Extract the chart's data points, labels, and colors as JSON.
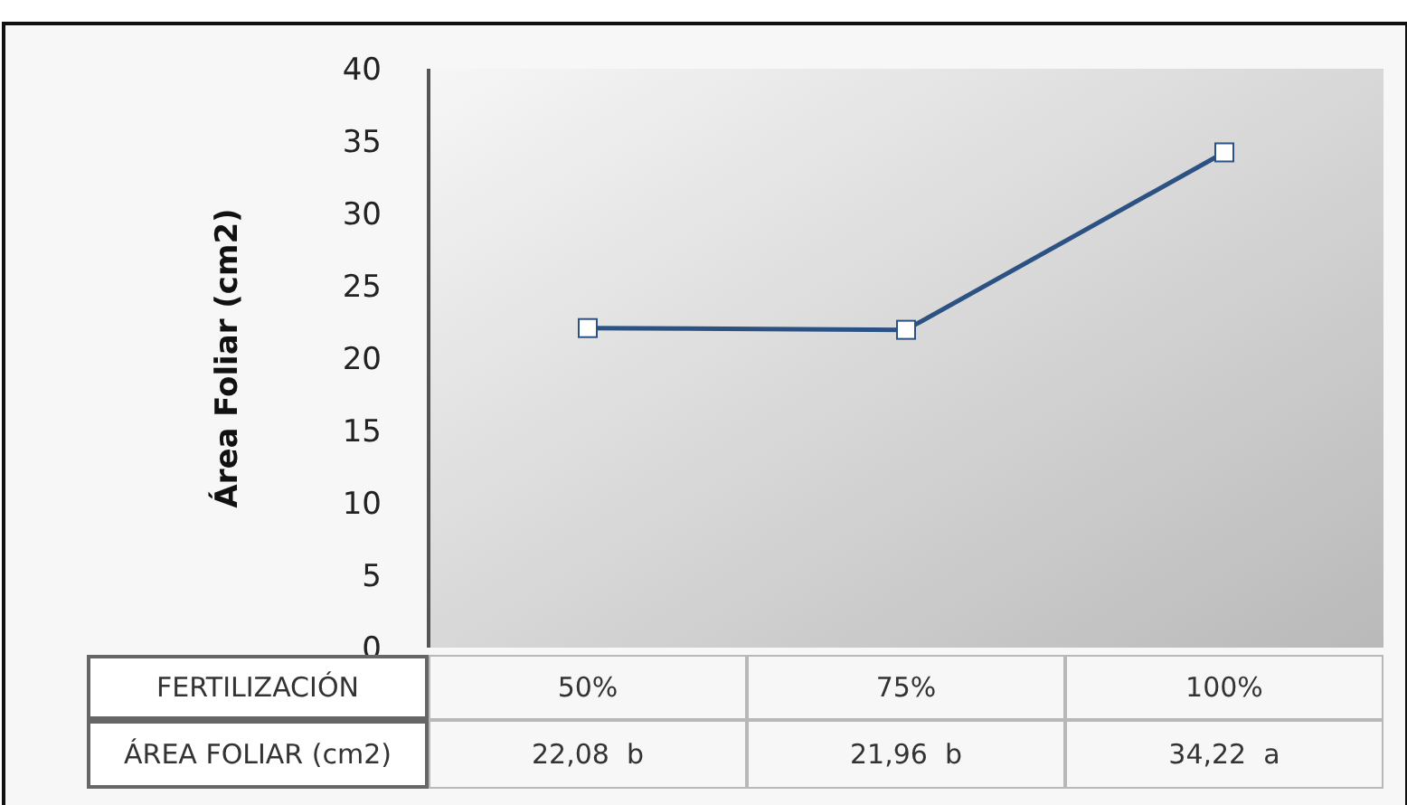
{
  "chart_data": {
    "type": "line",
    "ylabel": "Área Foliar (cm2)",
    "xlabel": "FERTILIZACIÓN",
    "categories": [
      "50%",
      "75%",
      "100%"
    ],
    "series": [
      {
        "name": "ÁREA FOLIAR (cm2)",
        "color": "#2b5283",
        "values": [
          22.08,
          21.96,
          34.22
        ],
        "value_labels": [
          "22,08  b",
          "21,96  b",
          "34,22  a"
        ]
      }
    ],
    "ylim": [
      0,
      40
    ],
    "yticks": [
      0,
      5,
      10,
      15,
      20,
      25,
      30,
      35,
      40
    ],
    "marker": "square",
    "line_style": "solid"
  }
}
